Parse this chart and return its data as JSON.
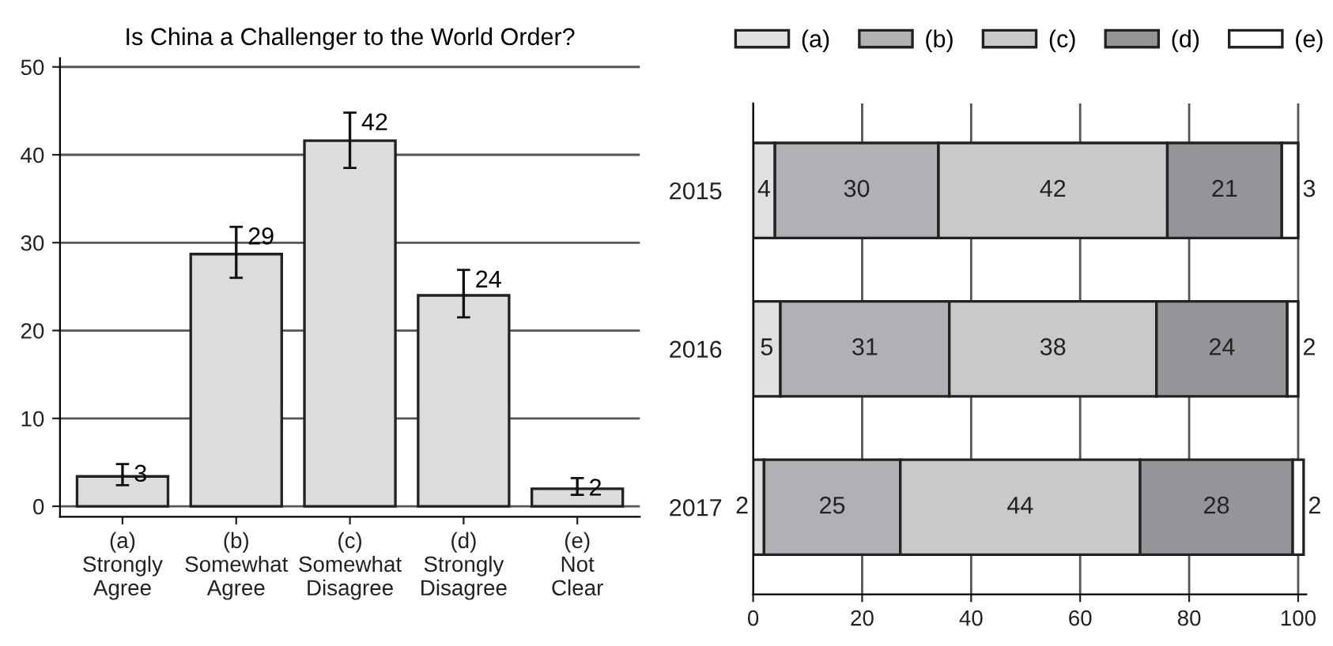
{
  "chart_data": [
    {
      "type": "bar",
      "title": "Is China a Challenger to the World Order?",
      "categories": [
        "(a)\nStrongly\nAgree",
        "(b)\nSomewhat\nAgree",
        "(c)\nSomewhat\nDisagree",
        "(d)\nStrongly\nDisagree",
        "(e)\nNot\nClear"
      ],
      "values": [
        3.4,
        28.7,
        41.6,
        24,
        2
      ],
      "value_labels": [
        "3",
        "29",
        "42",
        "24",
        "2"
      ],
      "errors": [
        [
          2.4,
          4.8
        ],
        [
          26,
          31.8
        ],
        [
          38.5,
          44.8
        ],
        [
          21.5,
          26.9
        ],
        [
          1.3,
          3.2
        ]
      ],
      "color": "#dcdcde",
      "ylim": [
        -1.2,
        51
      ],
      "yticks": [
        0,
        10,
        20,
        30,
        40,
        50
      ],
      "grid": "y",
      "legend": false
    },
    {
      "type": "bar",
      "orientation": "horizontal",
      "stacked": true,
      "categories": [
        "2015",
        "2016",
        "2017"
      ],
      "series": [
        {
          "name": "(a)",
          "color": "#e0e0e2",
          "values": [
            4,
            5,
            2
          ]
        },
        {
          "name": "(b)",
          "color": "#b0b1b4",
          "values": [
            30,
            31,
            25
          ]
        },
        {
          "name": "(c)",
          "color": "#c8c9cb",
          "values": [
            42,
            38,
            44
          ]
        },
        {
          "name": "(d)",
          "color": "#949598",
          "values": [
            21,
            24,
            28
          ]
        },
        {
          "name": "(e)",
          "color": "#ffffff",
          "values": [
            3,
            2,
            2
          ]
        }
      ],
      "data_labels": true,
      "xlim": [
        0,
        101.5
      ],
      "xticks": [
        0,
        20,
        40,
        60,
        80,
        100
      ],
      "grid": "x",
      "legend": "top"
    }
  ]
}
